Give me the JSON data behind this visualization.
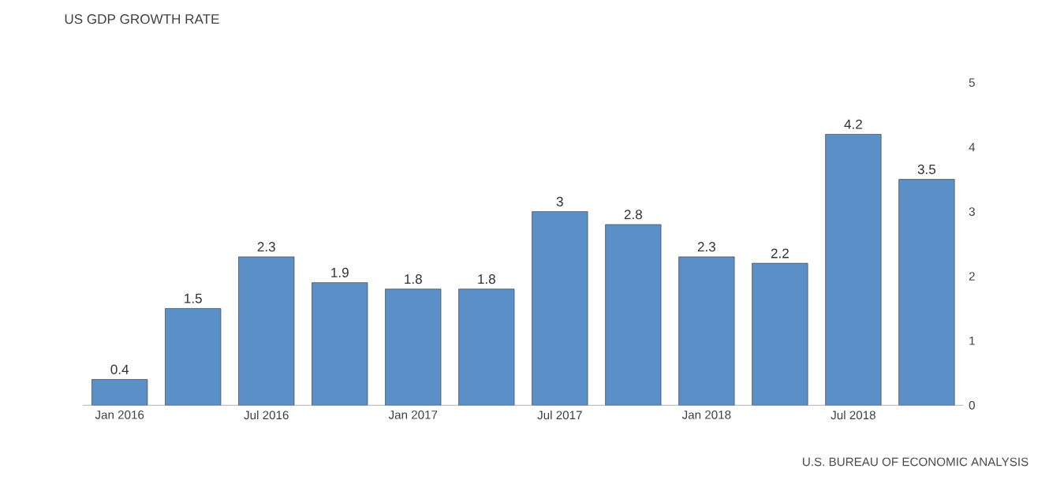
{
  "chart_data": {
    "type": "bar",
    "title": "US GDP GROWTH RATE",
    "categories": [
      "Jan 2016",
      null,
      "Jul 2016",
      null,
      "Jan 2017",
      null,
      "Jul 2017",
      null,
      "Jan 2018",
      null,
      "Jul 2018",
      null
    ],
    "values": [
      0.4,
      1.5,
      2.3,
      1.9,
      1.8,
      1.8,
      3,
      2.8,
      2.3,
      2.2,
      4.2,
      3.5
    ],
    "color": "#5b8fc7",
    "data_labels": true,
    "ylim": [
      0,
      5
    ],
    "yticks": [
      0,
      1,
      2,
      3,
      4,
      5
    ],
    "grid": false,
    "annotations": [
      "U.S. BUREAU OF ECONOMIC ANALYSIS"
    ]
  }
}
